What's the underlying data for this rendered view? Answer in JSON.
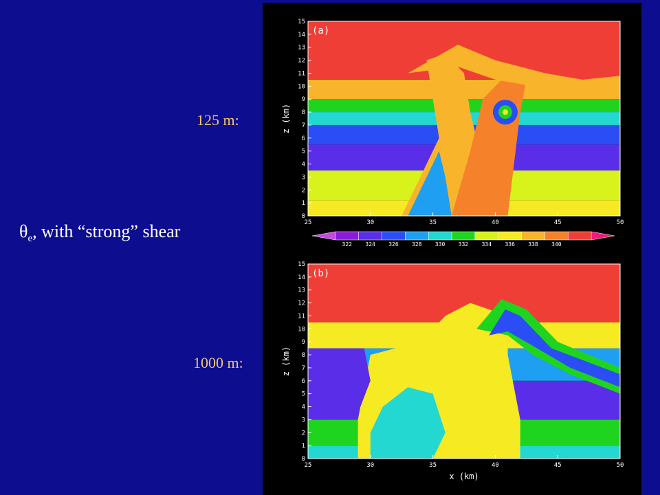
{
  "slide": {
    "label_top": "125 m:",
    "label_bottom": "1000 m:",
    "subtitle_symbol": "θ",
    "subtitle_sub": "e",
    "subtitle_rest": ", with “strong” shear"
  },
  "colors": {
    "background": "#0d0d8f",
    "label": "#f2c76a",
    "panel": "#000000"
  },
  "chart_data": [
    {
      "type": "heatmap",
      "panel_label": "(a)",
      "ylabel": "z (km)",
      "xlabel": "",
      "x_ticks": [
        "25",
        "30",
        "35",
        "40",
        "45",
        "50"
      ],
      "y_ticks": [
        "0",
        "1",
        "2",
        "3",
        "4",
        "5",
        "6",
        "7",
        "8",
        "9",
        "10",
        "11",
        "12",
        "13",
        "14",
        "15"
      ],
      "xlim": [
        25,
        50
      ],
      "ylim": [
        0,
        15
      ],
      "field": "theta_e (K)",
      "layers_by_height": [
        {
          "z": [
            0.0,
            1.2
          ],
          "theta_e": 335
        },
        {
          "z": [
            1.2,
            3.5
          ],
          "theta_e": 333
        },
        {
          "z": [
            3.5,
            5.5
          ],
          "theta_e": 323
        },
        {
          "z": [
            5.5,
            7.0
          ],
          "theta_e": 325
        },
        {
          "z": [
            7.0,
            8.0
          ],
          "theta_e": 329
        },
        {
          "z": [
            8.0,
            9.0
          ],
          "theta_e": 332
        },
        {
          "z": [
            9.0,
            10.5
          ],
          "theta_e": 337
        },
        {
          "z": [
            10.5,
            15.0
          ],
          "theta_e": 341
        }
      ]
    },
    {
      "type": "heatmap",
      "panel_label": "(b)",
      "ylabel": "z (km)",
      "xlabel": "x (km)",
      "x_ticks": [
        "25",
        "30",
        "35",
        "40",
        "45",
        "50"
      ],
      "y_ticks": [
        "0",
        "1",
        "2",
        "3",
        "4",
        "5",
        "6",
        "7",
        "8",
        "9",
        "10",
        "11",
        "12",
        "13",
        "14",
        "15"
      ],
      "xlim": [
        25,
        50
      ],
      "ylim": [
        0,
        15
      ],
      "field": "theta_e (K)",
      "layers_by_height": [
        {
          "z": [
            0.0,
            1.0
          ],
          "theta_e": 329
        },
        {
          "z": [
            1.0,
            3.0
          ],
          "theta_e": 331
        },
        {
          "z": [
            3.0,
            6.0
          ],
          "theta_e": 323
        },
        {
          "z": [
            6.0,
            8.5
          ],
          "theta_e": 327
        },
        {
          "z": [
            8.5,
            10.5
          ],
          "theta_e": 335
        },
        {
          "z": [
            10.5,
            15.0
          ],
          "theta_e": 341
        }
      ]
    }
  ],
  "colorbar": {
    "ticks": [
      "322",
      "324",
      "326",
      "328",
      "330",
      "332",
      "334",
      "336",
      "338",
      "340"
    ],
    "colors": [
      "#c44be0",
      "#8b1ad9",
      "#5a2ee8",
      "#2a4df5",
      "#1f9ff2",
      "#23d8d0",
      "#1fd41f",
      "#d8f21b",
      "#f6ea22",
      "#f8b42a",
      "#f5822a",
      "#ef3e36",
      "#f21a7a"
    ]
  }
}
